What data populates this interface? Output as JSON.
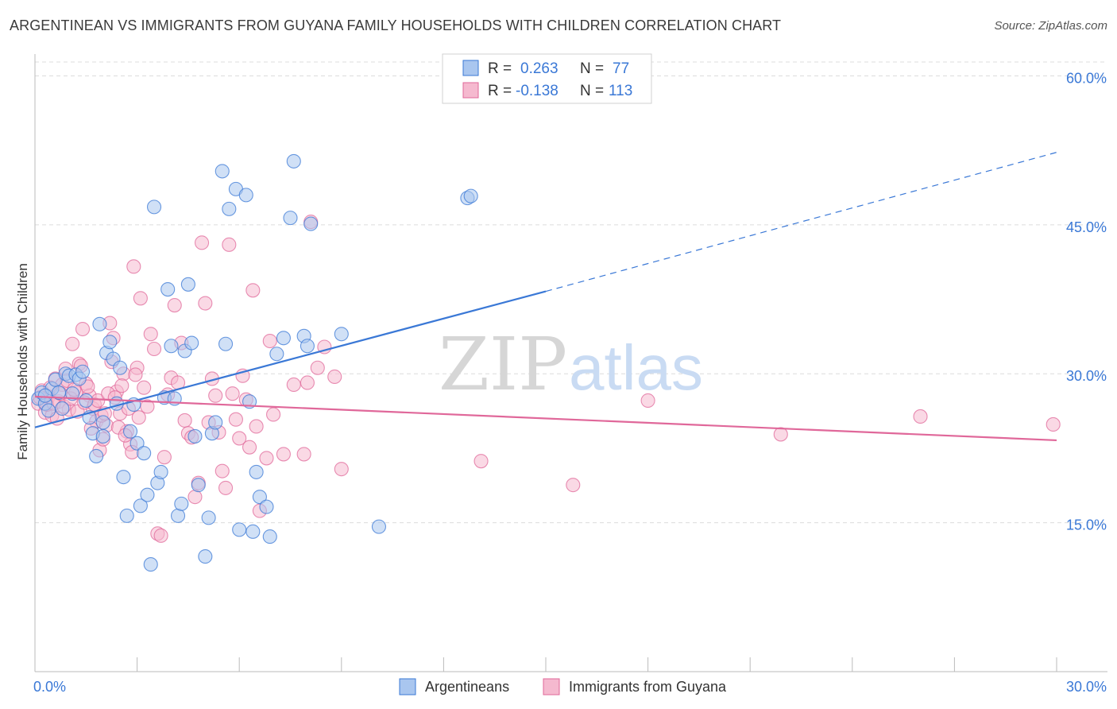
{
  "title": "ARGENTINEAN VS IMMIGRANTS FROM GUYANA FAMILY HOUSEHOLDS WITH CHILDREN CORRELATION CHART",
  "source": "Source: ZipAtlas.com",
  "watermark": {
    "zip": "ZIP",
    "atlas": "atlas"
  },
  "colors": {
    "blue": "#3a78d6",
    "blue_fill": "#a9c6ef",
    "pink": "#e0689a",
    "pink_fill": "#f5b9cf",
    "axis_text": "#3a78d6",
    "grid": "#d9d9d9"
  },
  "legend_top": {
    "rows": [
      {
        "r_label": "R =",
        "r_value": "0.263",
        "n_label": "N =",
        "n_value": "77"
      },
      {
        "r_label": "R =",
        "r_value": "-0.138",
        "n_label": "N =",
        "n_value": "113"
      }
    ]
  },
  "chart_data": {
    "type": "scatter",
    "title": "ARGENTINEAN VS IMMIGRANTS FROM GUYANA FAMILY HOUSEHOLDS WITH CHILDREN CORRELATION CHART",
    "xlabel": "",
    "ylabel": "Family Households with Children",
    "xlim": [
      0,
      30
    ],
    "ylim": [
      0,
      63
    ],
    "x_tick_labels": [
      "0.0%",
      "30.0%"
    ],
    "y_ticks": [
      15,
      30,
      45,
      60
    ],
    "y_tick_labels": [
      "15.0%",
      "30.0%",
      "45.0%",
      "60.0%"
    ],
    "grid": true,
    "legend_position": "bottom-center",
    "series": [
      {
        "name": "Argentineans",
        "r": 0.263,
        "n": 77,
        "trend": {
          "x0": 0,
          "y0": 24.6,
          "x1": 15,
          "y1": 38.3,
          "dash_to_x": 30,
          "dash_to_y": 52.3
        },
        "points": [
          [
            0.1,
            27.5
          ],
          [
            0.2,
            28.1
          ],
          [
            0.3,
            27.0
          ],
          [
            0.4,
            26.3
          ],
          [
            0.5,
            28.5
          ],
          [
            0.6,
            29.4
          ],
          [
            0.7,
            28.1
          ],
          [
            0.8,
            26.5
          ],
          [
            0.9,
            30.0
          ],
          [
            1.0,
            29.8
          ],
          [
            1.2,
            29.9
          ],
          [
            1.3,
            29.5
          ],
          [
            1.4,
            30.2
          ],
          [
            1.5,
            27.3
          ],
          [
            1.6,
            25.6
          ],
          [
            1.7,
            24.0
          ],
          [
            1.8,
            21.7
          ],
          [
            1.9,
            35.0
          ],
          [
            2.0,
            25.1
          ],
          [
            2.0,
            23.7
          ],
          [
            2.1,
            32.1
          ],
          [
            2.2,
            33.2
          ],
          [
            2.3,
            31.5
          ],
          [
            2.4,
            27.0
          ],
          [
            2.5,
            30.6
          ],
          [
            2.6,
            19.6
          ],
          [
            2.7,
            15.7
          ],
          [
            2.8,
            24.2
          ],
          [
            2.9,
            26.9
          ],
          [
            3.0,
            23.0
          ],
          [
            3.1,
            16.7
          ],
          [
            3.2,
            22.0
          ],
          [
            3.3,
            17.8
          ],
          [
            3.4,
            10.8
          ],
          [
            3.5,
            46.8
          ],
          [
            3.6,
            19.0
          ],
          [
            3.7,
            20.1
          ],
          [
            3.8,
            27.6
          ],
          [
            3.9,
            38.5
          ],
          [
            4.0,
            32.8
          ],
          [
            4.1,
            27.5
          ],
          [
            4.2,
            15.7
          ],
          [
            4.3,
            16.9
          ],
          [
            4.4,
            32.3
          ],
          [
            4.5,
            39.0
          ],
          [
            4.6,
            33.1
          ],
          [
            4.7,
            23.7
          ],
          [
            4.8,
            18.8
          ],
          [
            5.0,
            11.6
          ],
          [
            5.1,
            15.5
          ],
          [
            5.2,
            24.0
          ],
          [
            5.3,
            25.1
          ],
          [
            5.5,
            50.4
          ],
          [
            5.6,
            33.0
          ],
          [
            5.7,
            46.6
          ],
          [
            5.9,
            48.6
          ],
          [
            6.0,
            14.3
          ],
          [
            6.2,
            48.0
          ],
          [
            6.3,
            27.2
          ],
          [
            6.4,
            14.1
          ],
          [
            6.5,
            20.1
          ],
          [
            6.6,
            17.6
          ],
          [
            6.8,
            16.6
          ],
          [
            6.9,
            13.6
          ],
          [
            7.1,
            32.0
          ],
          [
            7.3,
            33.6
          ],
          [
            7.5,
            45.7
          ],
          [
            7.6,
            51.4
          ],
          [
            7.9,
            33.8
          ],
          [
            8.0,
            32.8
          ],
          [
            8.1,
            45.1
          ],
          [
            9.0,
            34.0
          ],
          [
            10.1,
            14.6
          ],
          [
            12.7,
            47.7
          ],
          [
            12.8,
            47.9
          ],
          [
            0.3,
            27.8
          ],
          [
            1.1,
            28.0
          ]
        ]
      },
      {
        "name": "Immigrants from Guyana",
        "r": -0.138,
        "n": 113,
        "trend": {
          "x0": 0,
          "y0": 27.7,
          "x1": 30,
          "y1": 23.3
        },
        "points": [
          [
            0.1,
            27.0
          ],
          [
            0.2,
            28.3
          ],
          [
            0.3,
            26.1
          ],
          [
            0.4,
            27.7
          ],
          [
            0.5,
            25.8
          ],
          [
            0.6,
            29.5
          ],
          [
            0.7,
            27.2
          ],
          [
            0.8,
            28.9
          ],
          [
            0.9,
            30.5
          ],
          [
            1.0,
            26.4
          ],
          [
            1.1,
            33.0
          ],
          [
            1.2,
            28.1
          ],
          [
            1.3,
            31.0
          ],
          [
            1.4,
            34.5
          ],
          [
            1.5,
            29.0
          ],
          [
            1.6,
            27.8
          ],
          [
            1.7,
            26.5
          ],
          [
            1.8,
            25.2
          ],
          [
            1.9,
            22.3
          ],
          [
            2.0,
            23.4
          ],
          [
            2.1,
            24.8
          ],
          [
            2.2,
            35.1
          ],
          [
            2.3,
            33.6
          ],
          [
            2.4,
            28.2
          ],
          [
            2.5,
            26.0
          ],
          [
            2.6,
            30.0
          ],
          [
            2.7,
            24.2
          ],
          [
            2.8,
            22.9
          ],
          [
            2.9,
            40.8
          ],
          [
            3.0,
            30.6
          ],
          [
            3.1,
            37.6
          ],
          [
            3.2,
            28.6
          ],
          [
            3.3,
            26.7
          ],
          [
            3.4,
            34.0
          ],
          [
            3.5,
            32.5
          ],
          [
            3.6,
            13.9
          ],
          [
            3.7,
            13.7
          ],
          [
            3.8,
            21.6
          ],
          [
            3.9,
            27.9
          ],
          [
            4.0,
            29.6
          ],
          [
            4.1,
            36.9
          ],
          [
            4.2,
            29.1
          ],
          [
            4.3,
            33.1
          ],
          [
            4.4,
            25.3
          ],
          [
            4.5,
            24.0
          ],
          [
            4.6,
            23.6
          ],
          [
            4.7,
            17.6
          ],
          [
            4.8,
            19.0
          ],
          [
            4.9,
            43.2
          ],
          [
            5.0,
            37.1
          ],
          [
            5.1,
            25.1
          ],
          [
            5.2,
            29.5
          ],
          [
            5.3,
            27.8
          ],
          [
            5.4,
            24.1
          ],
          [
            5.5,
            20.2
          ],
          [
            5.6,
            18.5
          ],
          [
            5.7,
            43.0
          ],
          [
            5.8,
            28.0
          ],
          [
            5.9,
            25.4
          ],
          [
            6.0,
            23.5
          ],
          [
            6.1,
            29.8
          ],
          [
            6.2,
            27.4
          ],
          [
            6.3,
            22.6
          ],
          [
            6.4,
            38.4
          ],
          [
            6.5,
            24.7
          ],
          [
            6.6,
            16.2
          ],
          [
            6.8,
            21.5
          ],
          [
            6.9,
            33.3
          ],
          [
            7.0,
            25.9
          ],
          [
            7.3,
            21.9
          ],
          [
            7.6,
            28.9
          ],
          [
            7.9,
            21.9
          ],
          [
            8.0,
            29.1
          ],
          [
            8.1,
            45.3
          ],
          [
            8.3,
            30.6
          ],
          [
            8.5,
            32.7
          ],
          [
            8.8,
            29.7
          ],
          [
            9.0,
            20.4
          ],
          [
            13.1,
            21.2
          ],
          [
            15.8,
            18.8
          ],
          [
            18.0,
            27.3
          ],
          [
            21.9,
            23.9
          ],
          [
            26.0,
            25.7
          ],
          [
            29.9,
            24.9
          ],
          [
            0.15,
            27.6
          ],
          [
            0.35,
            26.9
          ],
          [
            0.45,
            28.6
          ],
          [
            0.55,
            27.0
          ],
          [
            0.65,
            25.5
          ],
          [
            0.75,
            28.0
          ],
          [
            0.85,
            26.7
          ],
          [
            0.95,
            29.3
          ],
          [
            1.05,
            27.5
          ],
          [
            1.15,
            28.4
          ],
          [
            1.25,
            26.2
          ],
          [
            1.35,
            30.8
          ],
          [
            1.45,
            27.1
          ],
          [
            1.55,
            28.7
          ],
          [
            1.65,
            24.5
          ],
          [
            1.75,
            26.9
          ],
          [
            1.85,
            27.3
          ],
          [
            1.95,
            25.8
          ],
          [
            2.05,
            26.0
          ],
          [
            2.15,
            28.0
          ],
          [
            2.25,
            31.2
          ],
          [
            2.35,
            27.6
          ],
          [
            2.45,
            24.6
          ],
          [
            2.55,
            28.8
          ],
          [
            2.65,
            23.8
          ],
          [
            2.75,
            26.5
          ],
          [
            2.85,
            22.1
          ],
          [
            2.95,
            29.9
          ],
          [
            3.05,
            25.6
          ]
        ]
      }
    ]
  },
  "legend_bottom": [
    {
      "label": "Argentineans"
    },
    {
      "label": "Immigrants from Guyana"
    }
  ]
}
